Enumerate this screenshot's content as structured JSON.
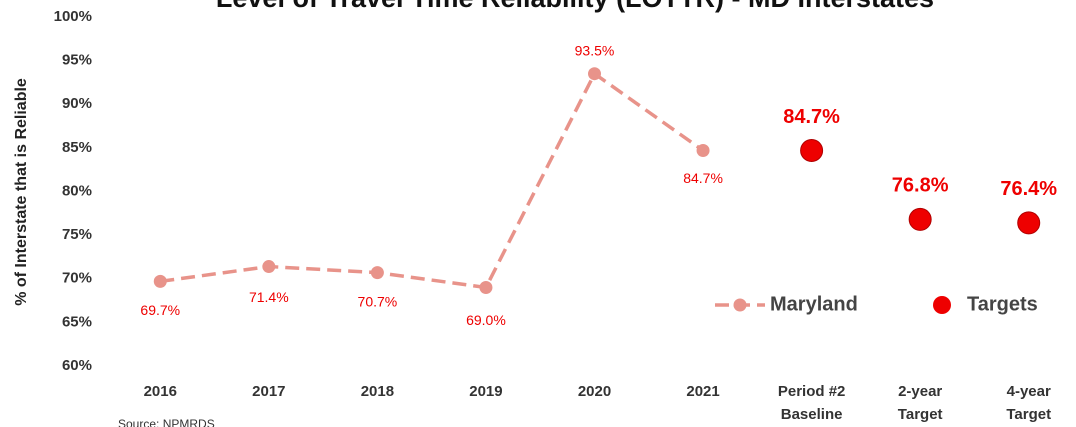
{
  "chart_data": {
    "type": "line",
    "title": "Level of Travel Time Reliability (LOTTR) - MD Interstates",
    "y_label": "% of Interstate  that is Reliable",
    "source": "Source: NPMRDS",
    "categories": [
      "2016",
      "2017",
      "2018",
      "2019",
      "2020",
      "2021",
      "Period #2 Baseline",
      "2-year Target",
      "4-year Target"
    ],
    "series": [
      {
        "name": "Maryland",
        "color": "#e8938a",
        "line_style": "dashed",
        "values": [
          69.7,
          71.4,
          70.7,
          69.0,
          93.5,
          84.7,
          null,
          null,
          null
        ],
        "value_labels": [
          "69.7%",
          "71.4%",
          "70.7%",
          "69.0%",
          "93.5%",
          "84.7%",
          null,
          null,
          null
        ]
      },
      {
        "name": "Targets",
        "color": "#ee0000",
        "line_style": "none",
        "values": [
          null,
          null,
          null,
          null,
          null,
          null,
          84.7,
          76.8,
          76.4
        ],
        "value_labels": [
          null,
          null,
          null,
          null,
          null,
          null,
          "84.7%",
          "76.8%",
          "76.4%"
        ]
      }
    ],
    "ylim": [
      60,
      100
    ],
    "yticks": [
      {
        "value": 60,
        "label": "60%"
      },
      {
        "value": 65,
        "label": "65%"
      },
      {
        "value": 70,
        "label": "70%"
      },
      {
        "value": 75,
        "label": "75%"
      },
      {
        "value": 80,
        "label": "80%"
      },
      {
        "value": 85,
        "label": "85%"
      },
      {
        "value": 90,
        "label": "90%"
      },
      {
        "value": 95,
        "label": "95%"
      },
      {
        "value": 100,
        "label": "100%"
      }
    ],
    "grid": false,
    "legend": "lower right"
  }
}
